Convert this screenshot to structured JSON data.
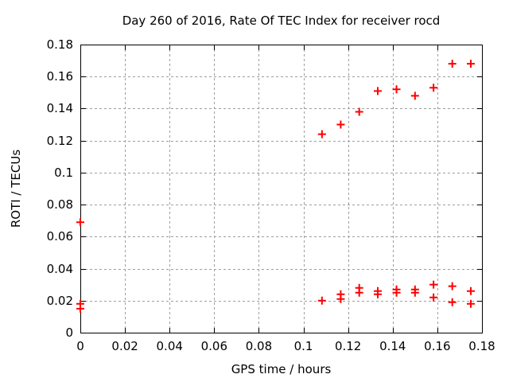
{
  "chart_data": {
    "type": "scatter",
    "title": "Day 260 of 2016, Rate Of TEC Index for receiver rocd",
    "xlabel": "GPS time / hours",
    "ylabel": "ROTI / TECUs",
    "xlim": [
      0,
      0.18
    ],
    "ylim": [
      0,
      0.18
    ],
    "xticks": [
      0,
      0.02,
      0.04,
      0.06,
      0.08,
      0.1,
      0.12,
      0.14,
      0.16,
      0.18
    ],
    "xtick_labels": [
      "0",
      "0.02",
      "0.04",
      "0.06",
      "0.08",
      "0.1",
      "0.12",
      "0.14",
      "0.16",
      "0.18"
    ],
    "yticks": [
      0,
      0.02,
      0.04,
      0.06,
      0.08,
      0.1,
      0.12,
      0.14,
      0.16,
      0.18
    ],
    "ytick_labels": [
      "0",
      "0.02",
      "0.04",
      "0.06",
      "0.08",
      "0.1",
      "0.12",
      "0.14",
      "0.16",
      "0.18"
    ],
    "grid": true,
    "legend": "none",
    "colors": {
      "marker": "#ff0000",
      "grid": "#9e9e9e",
      "axis": "#000000",
      "background": "#ffffff"
    },
    "series": [
      {
        "name": "ROTI",
        "marker": "plus",
        "color": "#ff0000",
        "points": [
          [
            0,
            0.069
          ],
          [
            0,
            0.018
          ],
          [
            0,
            0.015
          ],
          [
            0.1083,
            0.124
          ],
          [
            0.1083,
            0.02
          ],
          [
            0.1167,
            0.13
          ],
          [
            0.1167,
            0.024
          ],
          [
            0.1167,
            0.021
          ],
          [
            0.125,
            0.138
          ],
          [
            0.125,
            0.028
          ],
          [
            0.125,
            0.025
          ],
          [
            0.1333,
            0.151
          ],
          [
            0.1333,
            0.026
          ],
          [
            0.1333,
            0.024
          ],
          [
            0.1417,
            0.152
          ],
          [
            0.1417,
            0.027
          ],
          [
            0.1417,
            0.025
          ],
          [
            0.15,
            0.148
          ],
          [
            0.15,
            0.027
          ],
          [
            0.15,
            0.025
          ],
          [
            0.1583,
            0.153
          ],
          [
            0.1583,
            0.03
          ],
          [
            0.1583,
            0.022
          ],
          [
            0.1667,
            0.168
          ],
          [
            0.1667,
            0.029
          ],
          [
            0.1667,
            0.019
          ],
          [
            0.175,
            0.168
          ],
          [
            0.175,
            0.026
          ],
          [
            0.175,
            0.018
          ]
        ]
      }
    ]
  }
}
